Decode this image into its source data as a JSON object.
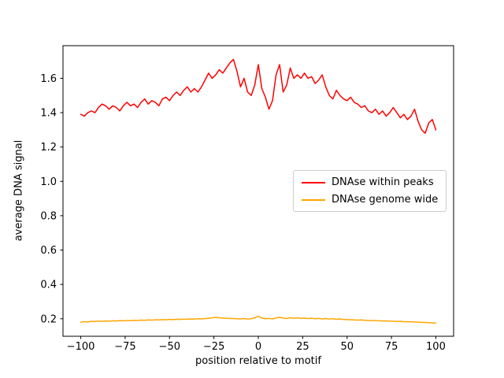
{
  "figure": {
    "background": "#ffffff"
  },
  "chart_data": {
    "type": "line",
    "title": "",
    "xlabel": "position relative to motif",
    "ylabel": "average DNA signal",
    "xlim": [
      -110,
      110
    ],
    "ylim": [
      0.098,
      1.79
    ],
    "xticks": [
      -100,
      -75,
      -50,
      -25,
      0,
      25,
      50,
      75,
      100
    ],
    "yticks": [
      0.2,
      0.4,
      0.6,
      0.8,
      1.0,
      1.2,
      1.4,
      1.6
    ],
    "grid": false,
    "legend_position": "center right",
    "x": [
      -100,
      -98,
      -96,
      -94,
      -92,
      -90,
      -88,
      -86,
      -84,
      -82,
      -80,
      -78,
      -76,
      -74,
      -72,
      -70,
      -68,
      -66,
      -64,
      -62,
      -60,
      -58,
      -56,
      -54,
      -52,
      -50,
      -48,
      -46,
      -44,
      -42,
      -40,
      -38,
      -36,
      -34,
      -32,
      -30,
      -28,
      -26,
      -24,
      -22,
      -20,
      -18,
      -16,
      -14,
      -12,
      -10,
      -8,
      -6,
      -4,
      -2,
      0,
      2,
      4,
      6,
      8,
      10,
      12,
      14,
      16,
      18,
      20,
      22,
      24,
      26,
      28,
      30,
      32,
      34,
      36,
      38,
      40,
      42,
      44,
      46,
      48,
      50,
      52,
      54,
      56,
      58,
      60,
      62,
      64,
      66,
      68,
      70,
      72,
      74,
      76,
      78,
      80,
      82,
      84,
      86,
      88,
      90,
      92,
      94,
      96,
      98,
      100
    ],
    "series": [
      {
        "name": "DNAse within peaks",
        "color": "#ff0000",
        "values": [
          1.39,
          1.38,
          1.4,
          1.41,
          1.4,
          1.43,
          1.45,
          1.44,
          1.42,
          1.44,
          1.43,
          1.41,
          1.44,
          1.46,
          1.44,
          1.45,
          1.43,
          1.46,
          1.48,
          1.45,
          1.47,
          1.46,
          1.44,
          1.48,
          1.49,
          1.47,
          1.5,
          1.52,
          1.5,
          1.53,
          1.55,
          1.52,
          1.54,
          1.52,
          1.55,
          1.59,
          1.63,
          1.6,
          1.62,
          1.65,
          1.63,
          1.66,
          1.69,
          1.71,
          1.64,
          1.55,
          1.6,
          1.52,
          1.5,
          1.56,
          1.68,
          1.54,
          1.49,
          1.42,
          1.47,
          1.62,
          1.68,
          1.52,
          1.56,
          1.66,
          1.6,
          1.62,
          1.6,
          1.63,
          1.6,
          1.61,
          1.57,
          1.59,
          1.62,
          1.55,
          1.5,
          1.48,
          1.53,
          1.5,
          1.48,
          1.47,
          1.49,
          1.46,
          1.45,
          1.43,
          1.44,
          1.41,
          1.4,
          1.42,
          1.39,
          1.41,
          1.38,
          1.4,
          1.43,
          1.4,
          1.37,
          1.39,
          1.36,
          1.38,
          1.42,
          1.35,
          1.3,
          1.28,
          1.34,
          1.36,
          1.3
        ]
      },
      {
        "name": "DNAse genome wide",
        "color": "#ffa500",
        "values": [
          0.18,
          0.183,
          0.181,
          0.185,
          0.184,
          0.186,
          0.185,
          0.187,
          0.186,
          0.188,
          0.187,
          0.189,
          0.188,
          0.19,
          0.189,
          0.191,
          0.19,
          0.192,
          0.191,
          0.193,
          0.192,
          0.194,
          0.193,
          0.195,
          0.194,
          0.196,
          0.195,
          0.197,
          0.196,
          0.198,
          0.197,
          0.199,
          0.198,
          0.2,
          0.199,
          0.201,
          0.203,
          0.205,
          0.208,
          0.206,
          0.204,
          0.203,
          0.202,
          0.201,
          0.2,
          0.199,
          0.201,
          0.198,
          0.2,
          0.205,
          0.215,
          0.204,
          0.2,
          0.202,
          0.199,
          0.205,
          0.208,
          0.204,
          0.202,
          0.206,
          0.203,
          0.205,
          0.202,
          0.204,
          0.201,
          0.203,
          0.2,
          0.202,
          0.199,
          0.201,
          0.198,
          0.2,
          0.197,
          0.199,
          0.196,
          0.195,
          0.194,
          0.193,
          0.192,
          0.193,
          0.191,
          0.19,
          0.189,
          0.19,
          0.188,
          0.187,
          0.188,
          0.186,
          0.185,
          0.184,
          0.185,
          0.183,
          0.182,
          0.183,
          0.181,
          0.18,
          0.179,
          0.178,
          0.177,
          0.176,
          0.175
        ]
      }
    ]
  }
}
